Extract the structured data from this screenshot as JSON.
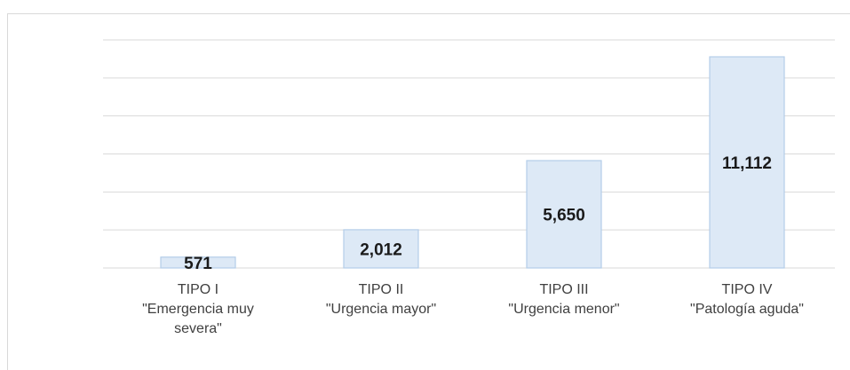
{
  "chart_data": {
    "type": "bar",
    "categories": [
      [
        "TIPO I",
        "\"Emergencia muy",
        "severa\""
      ],
      [
        "TIPO II",
        "\"Urgencia mayor\""
      ],
      [
        "TIPO III",
        "\"Urgencia menor\""
      ],
      [
        "TIPO IV",
        "\"Patología aguda\""
      ]
    ],
    "values": [
      571,
      2012,
      5650,
      11112
    ],
    "value_labels": [
      "571",
      "2,012",
      "5,650",
      "11,112"
    ],
    "color": "#dde9f6",
    "edge_color": "#b4cde8",
    "ylim": [
      0,
      12000
    ],
    "yticks": [
      0,
      2000,
      4000,
      6000,
      8000,
      10000,
      12000
    ],
    "grid": true
  }
}
